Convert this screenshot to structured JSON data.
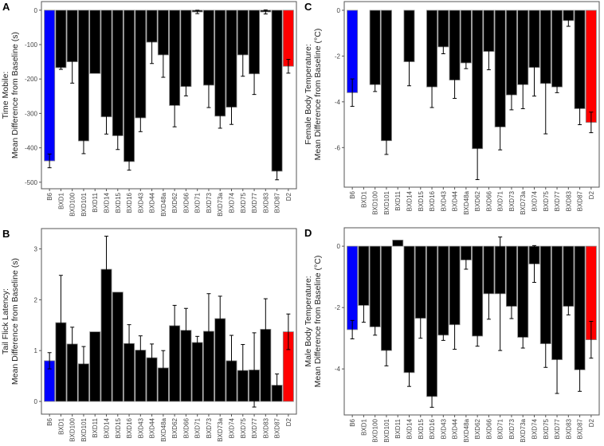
{
  "chart_data": [
    {
      "panel": "A",
      "type": "bar",
      "ylabel": [
        "Time Mobile:",
        "Mean Difference from Baseline (s)"
      ],
      "ylim": [
        -519,
        25
      ],
      "yticks": [
        0,
        -100,
        -200,
        -300,
        -400,
        -500
      ],
      "categories": [
        "B6",
        "BXD1",
        "BXD100",
        "BXD101",
        "BXD11",
        "BXD14",
        "BXD15",
        "BXD16",
        "BXD43",
        "BXD44",
        "BXD48a",
        "BXD62",
        "BXD66",
        "BXD71",
        "BXD73",
        "BXD73a",
        "BXD74",
        "BXD75",
        "BXD77",
        "BXD83",
        "BXD87",
        "D2"
      ],
      "values": [
        -438,
        -167,
        -150,
        -380,
        -184,
        -310,
        -365,
        -440,
        -313,
        -93,
        -130,
        -277,
        -222,
        -5,
        -218,
        -308,
        -282,
        -130,
        -185,
        -5,
        -468,
        -163
      ],
      "errors": [
        20,
        5,
        62,
        37,
        0,
        50,
        40,
        25,
        40,
        62,
        65,
        62,
        27,
        5,
        65,
        35,
        50,
        62,
        60,
        6,
        25,
        20
      ]
    },
    {
      "panel": "C",
      "type": "bar",
      "ylabel": [
        "Female Body Temperature:",
        "Mean Difference from Baseline (°C)"
      ],
      "ylim": [
        -7.73,
        0.38
      ],
      "yticks": [
        0,
        -2,
        -4,
        -6
      ],
      "categories": [
        "B6",
        "BXD1",
        "BXD100",
        "BXD101",
        "BXD11",
        "BXD14",
        "BXD15",
        "BXD16",
        "BXD43",
        "BXD44",
        "BXD48a",
        "BXD62",
        "BXD66",
        "BXD71",
        "BXD73",
        "BXD73a",
        "BXD74",
        "BXD75",
        "BXD77",
        "BXD83",
        "BXD87",
        "D2"
      ],
      "values": [
        -3.6,
        null,
        -3.25,
        -5.7,
        null,
        -2.25,
        null,
        -3.35,
        -1.6,
        -3.05,
        -2.3,
        -6.05,
        -1.8,
        -5.1,
        -3.7,
        -3.25,
        -2.5,
        -3.2,
        -3.35,
        -0.45,
        -4.3,
        -4.9
      ],
      "errors": [
        0.6,
        null,
        0.3,
        0.6,
        null,
        1.05,
        null,
        0.9,
        0.3,
        0.8,
        0.25,
        1.35,
        0.8,
        1.0,
        0.65,
        1.05,
        1.25,
        2.2,
        0.25,
        0.25,
        0.7,
        0.45
      ]
    },
    {
      "panel": "B",
      "type": "bar",
      "ylabel": [
        "Tail Flick Latency:",
        "Mean Difference from Baseline (s)"
      ],
      "ylim": [
        -0.25,
        3.4
      ],
      "yticks": [
        0,
        1,
        2,
        3
      ],
      "categories": [
        "B6",
        "BXD1",
        "BXD100",
        "BXD101",
        "BXD11",
        "BXD14",
        "BXD15",
        "BXD16",
        "BXD43",
        "BXD44",
        "BXD48a",
        "BXD62",
        "BXD66",
        "BXD71",
        "BXD73",
        "BXD73a",
        "BXD74",
        "BXD75",
        "BXD77",
        "BXD83",
        "BXD87",
        "D2"
      ],
      "values": [
        0.8,
        1.55,
        1.13,
        0.74,
        1.37,
        2.6,
        2.15,
        1.14,
        1.01,
        0.86,
        0.66,
        1.49,
        1.4,
        1.16,
        1.38,
        1.63,
        0.8,
        0.61,
        0.62,
        1.42,
        0.32,
        1.37
      ],
      "errors": [
        0.16,
        0.93,
        0.33,
        0.34,
        0,
        0.65,
        0,
        0.37,
        0.28,
        0.27,
        0.34,
        0.4,
        0.43,
        0.12,
        0.74,
        0.44,
        0.5,
        0.51,
        0.73,
        0.6,
        0.22,
        0.35
      ]
    },
    {
      "panel": "D",
      "type": "bar",
      "ylabel": [
        "Male Body Temperature:",
        "Mean Difference from Baseline (°C)"
      ],
      "ylim": [
        -5.5,
        0.6
      ],
      "yticks": [
        0,
        -2,
        -4
      ],
      "categories": [
        "B6",
        "BXD1",
        "BXD100",
        "BXD101",
        "BXD11",
        "BXD14",
        "BXD15",
        "BXD16",
        "BXD43",
        "BXD44",
        "BXD48a",
        "BXD62",
        "BXD66",
        "BXD71",
        "BXD73",
        "BXD73a",
        "BXD74",
        "BXD75",
        "BXD77",
        "BXD83",
        "BXD87",
        "D2"
      ],
      "values": [
        -2.72,
        -1.93,
        -2.63,
        -3.4,
        0.2,
        -4.12,
        -2.35,
        -4.9,
        -2.9,
        -2.56,
        -0.45,
        -2.93,
        -1.55,
        -1.55,
        -1.96,
        -2.97,
        -0.58,
        -3.18,
        -3.7,
        -1.96,
        -4.03,
        -3.05
      ],
      "errors": [
        0.3,
        0.55,
        0.27,
        0.5,
        0,
        0.45,
        0.65,
        0.35,
        0.17,
        0.8,
        0.3,
        0.33,
        0.83,
        1.85,
        0.4,
        0.35,
        0.6,
        0.77,
        1.1,
        0.28,
        0.7,
        0.6
      ]
    }
  ],
  "colors": {
    "B6": "#0000ff",
    "D2": "#ff0000",
    "default": "#000000",
    "outline": "#8a8a8a",
    "frame": "#555555"
  }
}
